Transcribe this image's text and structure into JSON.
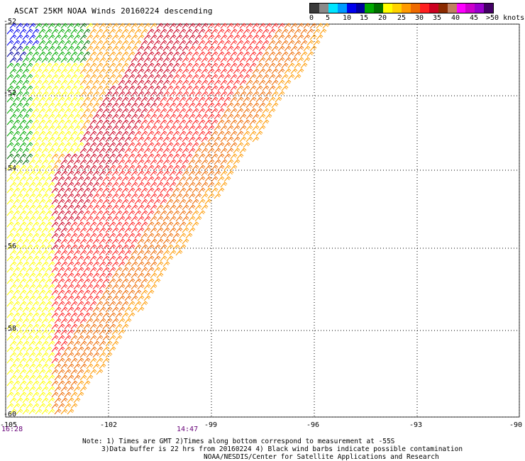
{
  "title": "ASCAT 25KM NOAA Winds 20160224 descending",
  "colorbar": {
    "colors": [
      "#3a3a3a",
      "#8a8a8a",
      "#00e5ff",
      "#0099ff",
      "#0000ee",
      "#0000a0",
      "#00aa00",
      "#006e00",
      "#ffff00",
      "#ffd200",
      "#ff9a00",
      "#ee6a00",
      "#ff2020",
      "#cc0020",
      "#8a2a00",
      "#c08060",
      "#ff00ff",
      "#cc00cc",
      "#9900cc",
      "#440066"
    ],
    "labels": [
      "0",
      "5",
      "10",
      "15",
      "20",
      "25",
      "30",
      "35",
      "40",
      "45",
      ">50 knots"
    ]
  },
  "map": {
    "lat_labels": [
      "-52",
      "-54",
      "-56",
      "-58",
      "-60"
    ],
    "lon_labels": [
      "-105",
      "-102",
      "-99",
      "-96",
      "-93",
      "-90"
    ],
    "time_labels": [
      "16:28",
      "14:47"
    ]
  },
  "notes": [
    "Note: 1) Times are GMT 2)Times along bottom correspond to measurement at -55S",
    "3)Data buffer is 22 hrs from 20160224 4) Black wind barbs indicate possible contamination",
    "NOAA/NESDIS/Center for Satellite Applications and Research"
  ]
}
